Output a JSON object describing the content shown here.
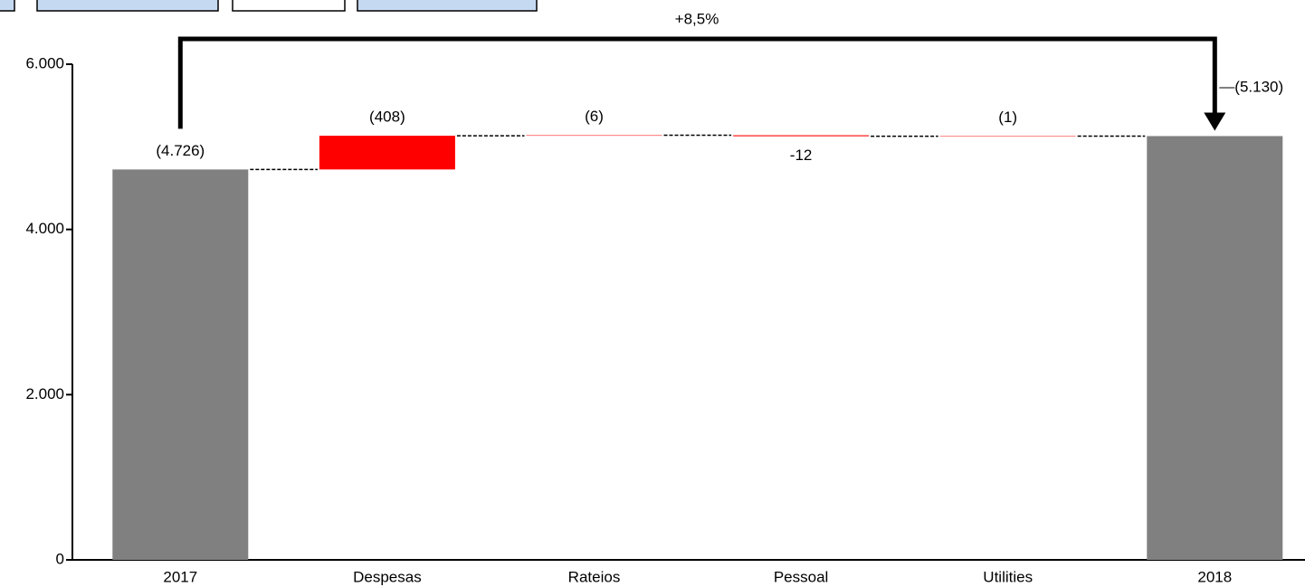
{
  "chart_data": {
    "type": "waterfall",
    "annotation": "+8,5%",
    "categories": [
      "2017",
      "Despesas",
      "Rateios",
      "Pessoal",
      "Utilities",
      "2018"
    ],
    "values": [
      4726,
      408,
      6,
      -12,
      1,
      5130
    ],
    "value_labels": [
      "(4.726)",
      "(408)",
      "(6)",
      "-12",
      "(1)",
      "(5.130)"
    ],
    "measures": [
      "total",
      "relative",
      "relative",
      "relative",
      "relative",
      "total"
    ],
    "colors": [
      "#808080",
      "#ff0000",
      "#ff0000",
      "#ff0000",
      "#ff0000",
      "#808080"
    ],
    "ylim": [
      0,
      6000
    ],
    "yticks": [
      0,
      {
        "value": 2000,
        "label": "2.000"
      },
      {
        "value": 4000,
        "label": "4.000"
      },
      {
        "value": 6000,
        "label": "6.000"
      }
    ]
  }
}
